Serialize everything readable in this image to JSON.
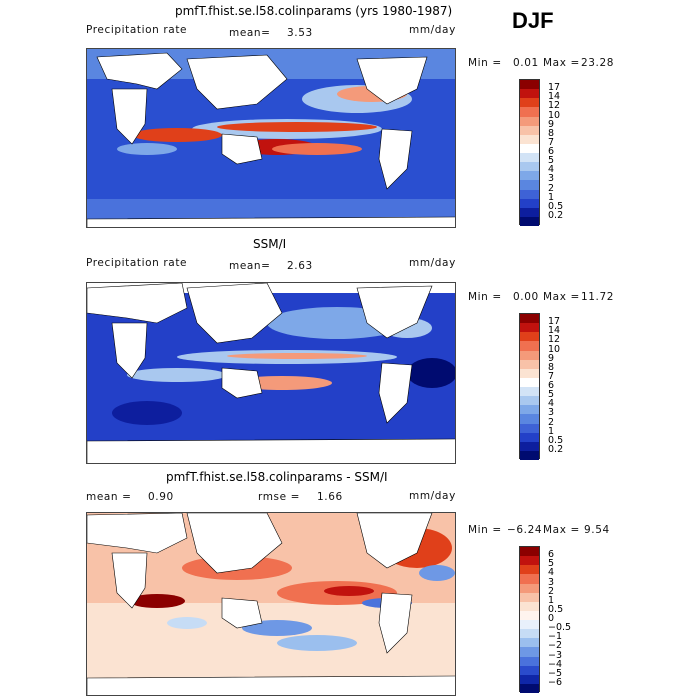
{
  "season": "DJF",
  "panels": [
    {
      "title": "pmfT.fhist.se.l58.colinparams (yrs 1980-1987)",
      "left_label": "Precipitation rate",
      "mean_label": "mean=",
      "mean_value": "3.53",
      "rmse_label": "",
      "rmse_value": "",
      "units": "mm/day",
      "min_label": "Min =",
      "min_value": "0.01",
      "max_label": "Max =",
      "max_value": "23.28",
      "colorbar_ticks": [
        "17",
        "14",
        "12",
        "10",
        "9",
        "8",
        "7",
        "6",
        "5",
        "4",
        "3",
        "2",
        "1",
        "0.5",
        "0.2"
      ]
    },
    {
      "title": "SSM/I",
      "left_label": "Precipitation rate",
      "mean_label": "mean=",
      "mean_value": "2.63",
      "rmse_label": "",
      "rmse_value": "",
      "units": "mm/day",
      "min_label": "Min =",
      "min_value": "0.00",
      "max_label": "Max =",
      "max_value": "11.72",
      "colorbar_ticks": [
        "17",
        "14",
        "12",
        "10",
        "9",
        "8",
        "7",
        "6",
        "5",
        "4",
        "3",
        "2",
        "1",
        "0.5",
        "0.2"
      ]
    },
    {
      "title": "pmfT.fhist.se.l58.colinparams - SSM/I",
      "left_label": "mean =",
      "mean_label": "",
      "mean_value": "0.90",
      "rmse_label": "rmse =",
      "rmse_value": "1.66",
      "units": "mm/day",
      "min_label": "Min =",
      "min_value": "−6.24",
      "max_label": "Max =",
      "max_value": "9.54",
      "colorbar_ticks": [
        "6",
        "5",
        "4",
        "3",
        "2",
        "1",
        "0.5",
        "0",
        "−0.5",
        "−1",
        "−2",
        "−3",
        "−4",
        "−5",
        "−6"
      ]
    }
  ],
  "colors": {
    "precip_scale": [
      "#8b0000",
      "#c1120e",
      "#e0401a",
      "#f07050",
      "#f49a7a",
      "#f8c2a8",
      "#fbe3d2",
      "#ffffff",
      "#d2e3f6",
      "#a9c8ef",
      "#7ea8e8",
      "#5a86e0",
      "#3e62d6",
      "#2340c8",
      "#0d1e9e",
      "#000b70"
    ],
    "diff_scale": [
      "#8b0000",
      "#c1120e",
      "#e0401a",
      "#f07050",
      "#f49a7a",
      "#f8c2a8",
      "#fbe3d2",
      "#fff4ee",
      "#e8f0fb",
      "#c6dcf5",
      "#9bbfee",
      "#6e98e5",
      "#4a72dc",
      "#2a4bcc",
      "#0f26a8",
      "#000b70"
    ]
  }
}
